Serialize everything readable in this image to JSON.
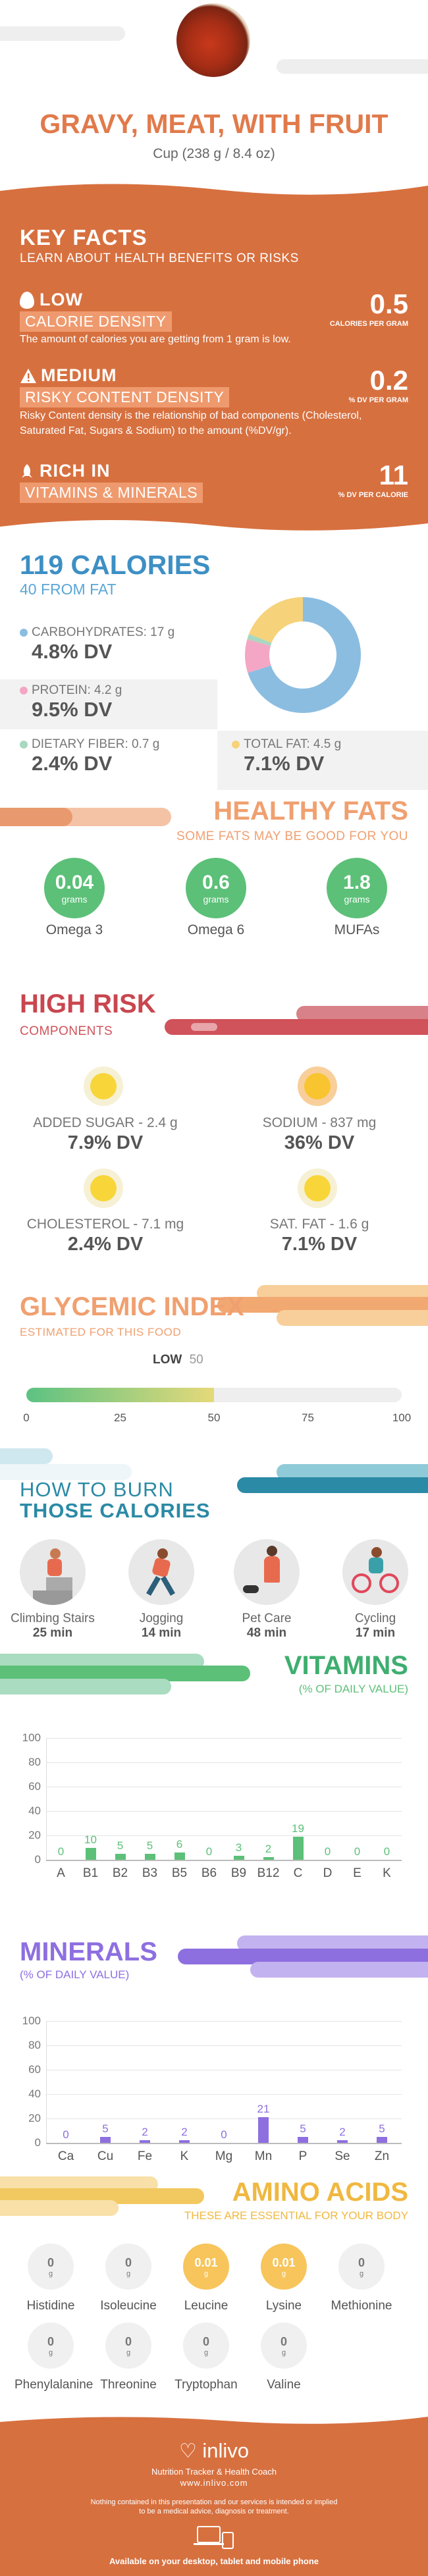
{
  "header": {
    "title": "GRAVY, MEAT, WITH FRUIT",
    "serving": "Cup (238 g / 8.4 oz)"
  },
  "key_facts": {
    "title": "KEY FACTS",
    "subtitle": "LEARN ABOUT HEALTH BENEFITS OR RISKS",
    "items": [
      {
        "level": "LOW",
        "label": "CALORIE DENSITY",
        "value": "0.5",
        "unit": "CALORIES PER GRAM",
        "desc": "The amount of calories you are getting from 1 gram is low."
      },
      {
        "level": "MEDIUM",
        "label": "RISKY CONTENT DENSITY",
        "value": "0.2",
        "unit": "% DV PER GRAM",
        "desc": "Risky Content density is the relationship of bad components (Cholesterol, Saturated Fat, Sugars & Sodium) to the amount (%DV/gr)."
      },
      {
        "level": "RICH IN",
        "label": "VITAMINS & MINERALS",
        "value": "11",
        "unit": "% DV PER CALORIE",
        "desc": ""
      }
    ]
  },
  "calories": {
    "title": "119 CALORIES",
    "from_fat": "40 FROM FAT",
    "carbs_label": "CARBOHYDRATES: 17 g",
    "carbs_dv": "4.8% DV",
    "protein_label": "PROTEIN: 4.2 g",
    "protein_dv": "9.5% DV",
    "fiber_label": "DIETARY FIBER: 0.7 g",
    "fiber_dv": "2.4% DV",
    "fat_label": "TOTAL FAT: 4.5 g",
    "fat_dv": "7.1% DV",
    "colors": {
      "carbs": "#8bbde0",
      "protein": "#f4a7c4",
      "fiber": "#a8d8c0",
      "fat": "#f6d27a"
    }
  },
  "healthy_fats": {
    "title": "HEALTHY FATS",
    "subtitle": "SOME FATS MAY BE GOOD FOR YOU",
    "unit": "grams",
    "items": [
      {
        "value": "0.04",
        "name": "Omega 3"
      },
      {
        "value": "0.6",
        "name": "Omega 6"
      },
      {
        "value": "1.8",
        "name": "MUFAs"
      }
    ]
  },
  "high_risk": {
    "title": "HIGH RISK",
    "subtitle": "COMPONENTS",
    "items": [
      {
        "label": "ADDED SUGAR - 2.4 g",
        "dv": "7.9% DV"
      },
      {
        "label": "SODIUM - 837 mg",
        "dv": "36% DV"
      },
      {
        "label": "CHOLESTEROL - 7.1 mg",
        "dv": "2.4% DV"
      },
      {
        "label": "SAT. FAT - 1.6 g",
        "dv": "7.1% DV"
      }
    ]
  },
  "glycemic": {
    "title": "GLYCEMIC INDEX",
    "subtitle": "ESTIMATED FOR THIS FOOD",
    "level": "LOW",
    "value": "50",
    "fraction": 0.5,
    "ticks": [
      "0",
      "25",
      "50",
      "75",
      "100"
    ]
  },
  "burn": {
    "title1": "HOW TO BURN",
    "title2": "THOSE CALORIES",
    "items": [
      {
        "name": "Climbing Stairs",
        "time": "25 min"
      },
      {
        "name": "Jogging",
        "time": "14 min"
      },
      {
        "name": "Pet Care",
        "time": "48 min"
      },
      {
        "name": "Cycling",
        "time": "17 min"
      }
    ]
  },
  "vitamins": {
    "title": "VITAMINS",
    "subtitle": "(% OF DAILY VALUE)",
    "color": "#5cc078"
  },
  "minerals": {
    "title": "MINERALS",
    "subtitle": "(% OF DAILY VALUE)",
    "color": "#8e6fe0"
  },
  "chart_data": [
    {
      "type": "bar",
      "title": "VITAMINS",
      "categories": [
        "A",
        "B1",
        "B2",
        "B3",
        "B5",
        "B6",
        "B9",
        "B12",
        "C",
        "D",
        "E",
        "K"
      ],
      "values": [
        0,
        10,
        5,
        5,
        6,
        0,
        3,
        2,
        19,
        0,
        0,
        0
      ],
      "ylim": [
        0,
        100
      ],
      "yticks": [
        "0",
        "20",
        "40",
        "60",
        "80",
        "100"
      ]
    },
    {
      "type": "bar",
      "title": "MINERALS",
      "categories": [
        "Ca",
        "Cu",
        "Fe",
        "K",
        "Mg",
        "Mn",
        "P",
        "Se",
        "Zn"
      ],
      "values": [
        0,
        5,
        2,
        2,
        0,
        21,
        5,
        2,
        5
      ],
      "ylim": [
        0,
        100
      ],
      "yticks": [
        "0",
        "20",
        "40",
        "60",
        "80",
        "100"
      ]
    }
  ],
  "amino": {
    "title": "AMINO ACIDS",
    "subtitle": "THESE ARE ESSENTIAL FOR YOUR BODY",
    "unit": "g",
    "items": [
      {
        "name": "Histidine",
        "value": "0"
      },
      {
        "name": "Isoleucine",
        "value": "0"
      },
      {
        "name": "Leucine",
        "value": "0.01"
      },
      {
        "name": "Lysine",
        "value": "0.01"
      },
      {
        "name": "Methionine",
        "value": "0"
      },
      {
        "name": "Phenylalanine",
        "value": "0"
      },
      {
        "name": "Threonine",
        "value": "0"
      },
      {
        "name": "Tryptophan",
        "value": "0"
      },
      {
        "name": "Valine",
        "value": "0"
      }
    ]
  },
  "footer": {
    "brand": "inlivo",
    "tagline": "Nutrition Tracker & Health Coach",
    "url": "www.inlivo.com",
    "disclaimer1": "Nothing contained in this presentation and our services is intended or implied",
    "disclaimer2": "to be a medical advice, diagnosis or treatment.",
    "available": "Available on your desktop, tablet and mobile phone"
  }
}
